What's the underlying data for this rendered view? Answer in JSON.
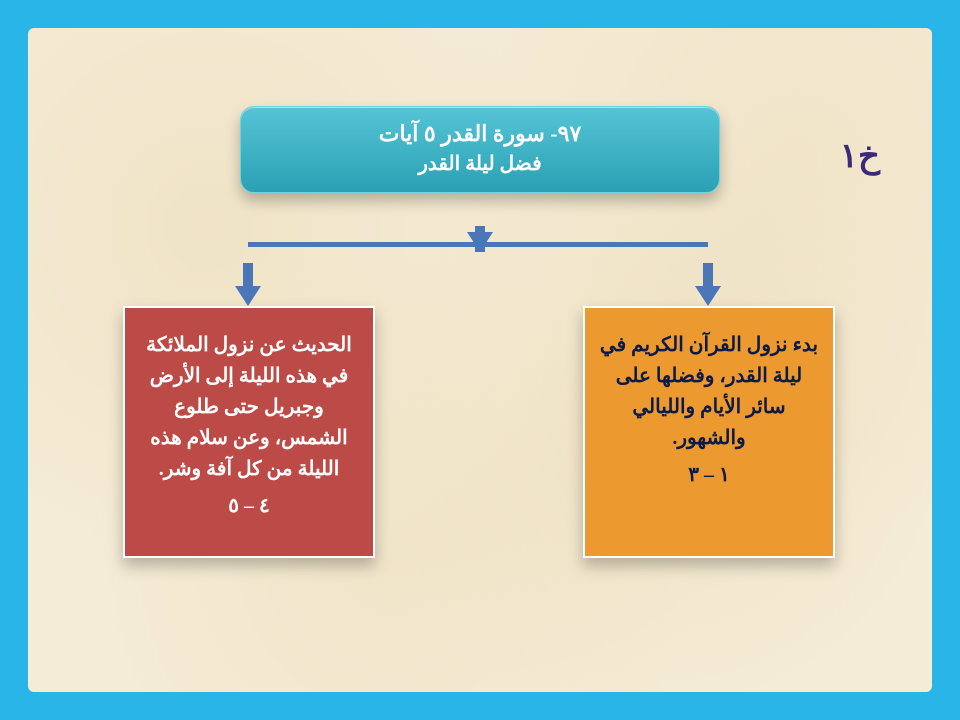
{
  "corner_label": "خ١",
  "header": {
    "title": "٩٧- سورة القدر ٥ آيات",
    "subtitle": "فضل ليلة القدر",
    "bg_gradient_top": "#55c5d6",
    "bg_gradient_bottom": "#2ba0b4",
    "text_color": "#ffffff"
  },
  "arrow_color": "#4b77b9",
  "boxes": {
    "right": {
      "text": "بدء نزول القرآن الكريم في ليلة القدر، وفضلها على سائر الأيام والليالي والشهور.",
      "verses": "١ – ٣",
      "bg": "#ec9a30",
      "fg": "#0d1a46"
    },
    "left": {
      "text": "الحديث عن نزول الملائكة في هذه الليلة إلى الأرض وجبريل حتى طلوع الشمس، وعن سلام هذه الليلة من كل آفة وشر.",
      "verses": "٤ – ٥",
      "bg": "#bc4a46",
      "fg": "#ffffff"
    }
  },
  "page_bg": "#29b5e8",
  "canvas_bg": "#f5ecd6"
}
